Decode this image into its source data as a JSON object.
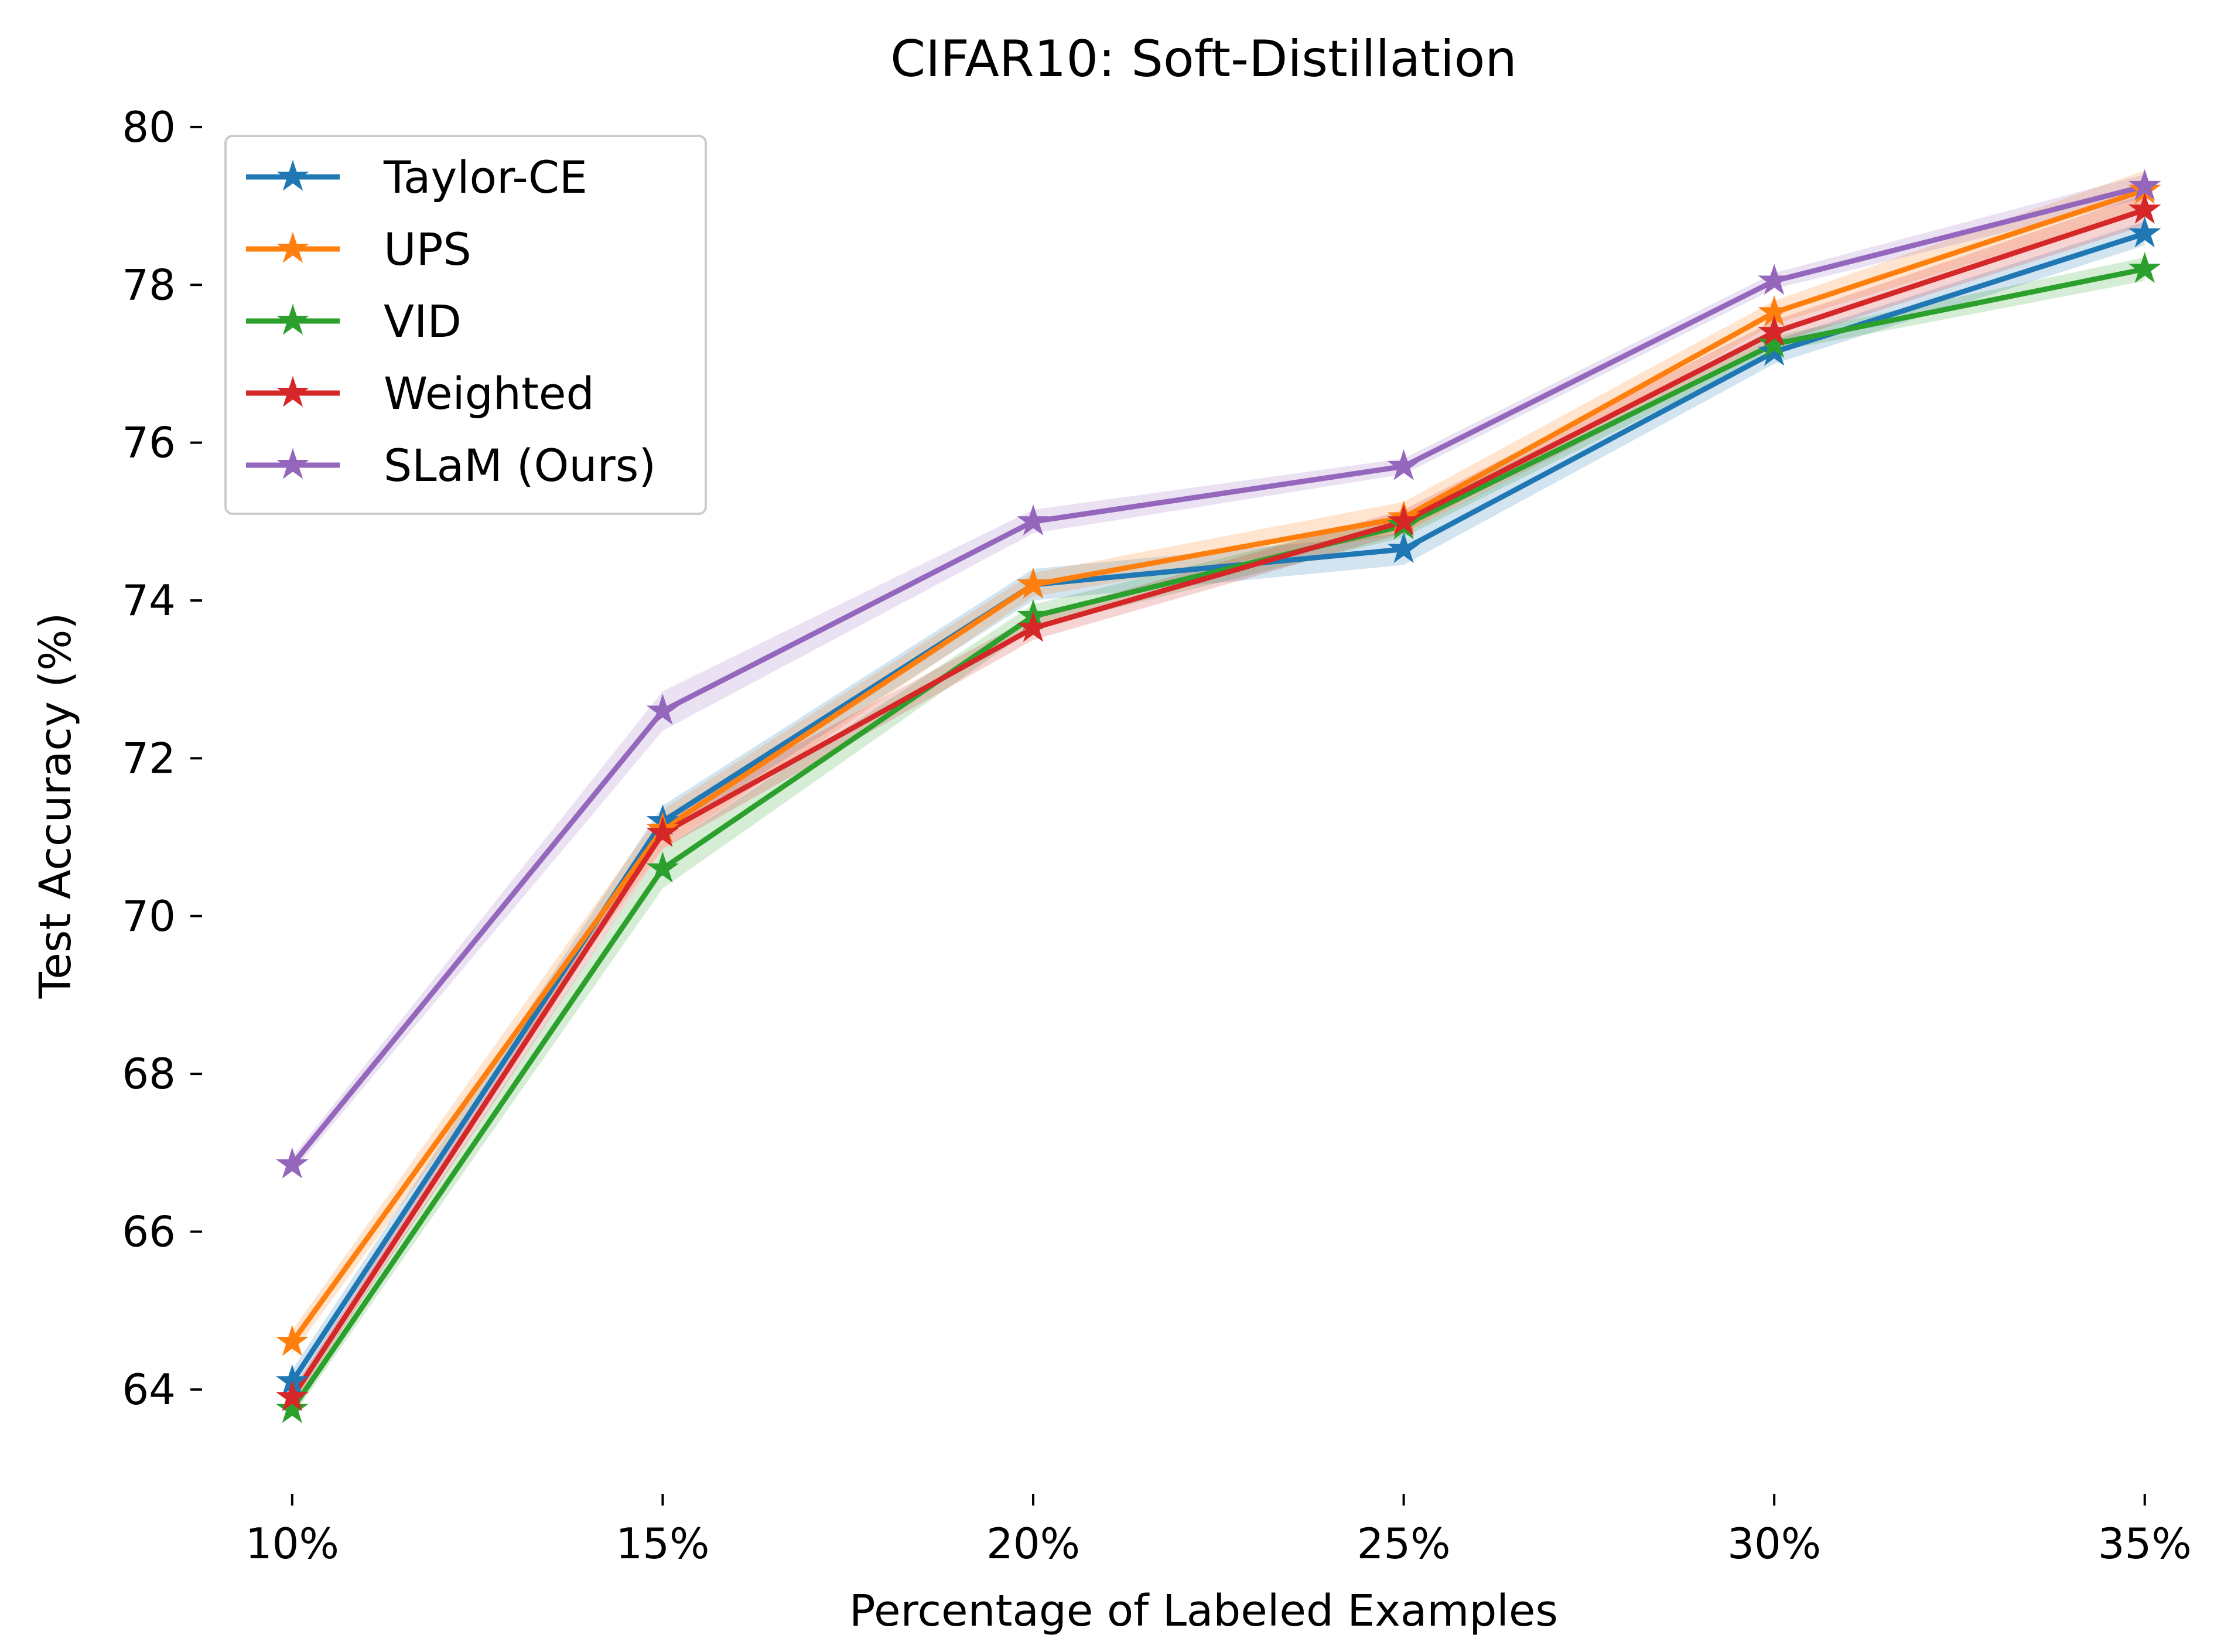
{
  "chart_data": {
    "type": "line",
    "title": "CIFAR10: Soft-Distillation",
    "xlabel": "Percentage of Labeled Examples",
    "ylabel": "Test Accuracy (%)",
    "categories": [
      "10%",
      "15%",
      "20%",
      "25%",
      "30%",
      "35%"
    ],
    "x": [
      10,
      15,
      20,
      25,
      30,
      35
    ],
    "xlim": [
      9.1,
      35.5
    ],
    "ylim": [
      62.9,
      80.2
    ],
    "yticks": [
      64,
      66,
      68,
      70,
      72,
      74,
      76,
      78,
      80
    ],
    "grid": false,
    "legend_position": "top-left",
    "marker": "star",
    "series": [
      {
        "name": "Taylor-CE",
        "color": "#1f77b4",
        "values": [
          64.1,
          71.2,
          74.2,
          74.65,
          77.15,
          78.65
        ],
        "band": [
          0.15,
          0.2,
          0.2,
          0.2,
          0.15,
          0.15
        ]
      },
      {
        "name": "UPS",
        "color": "#ff7f0e",
        "values": [
          64.6,
          71.1,
          74.2,
          75.05,
          77.65,
          79.2
        ],
        "band": [
          0.15,
          0.25,
          0.15,
          0.2,
          0.15,
          0.25
        ]
      },
      {
        "name": "VID",
        "color": "#2ca02c",
        "values": [
          63.75,
          70.6,
          73.8,
          74.95,
          77.25,
          78.2
        ],
        "band": [
          0.1,
          0.25,
          0.15,
          0.15,
          0.1,
          0.15
        ]
      },
      {
        "name": "Weighted",
        "color": "#d62728",
        "values": [
          63.9,
          71.05,
          73.65,
          75.0,
          77.4,
          78.95
        ],
        "band": [
          0.1,
          0.2,
          0.15,
          0.15,
          0.15,
          0.2
        ]
      },
      {
        "name": "SLaM (Ours)",
        "color": "#9467bd",
        "values": [
          66.85,
          72.6,
          75.0,
          75.7,
          78.05,
          79.25
        ],
        "band": [
          0.1,
          0.25,
          0.15,
          0.1,
          0.1,
          0.15
        ]
      }
    ]
  }
}
